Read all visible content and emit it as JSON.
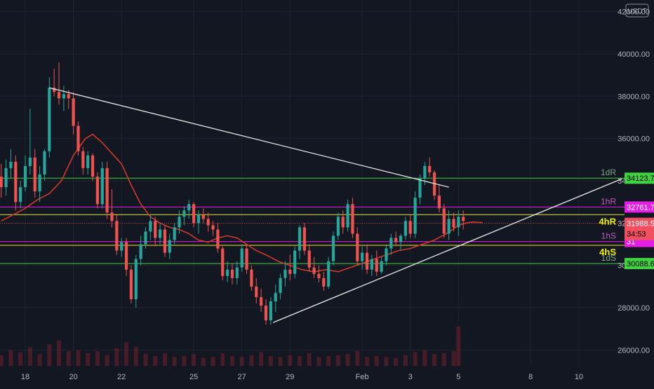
{
  "currency_badge": "USDT",
  "colors": {
    "background": "#131722",
    "grid": "#1f2430",
    "up": "#26a69a",
    "down": "#ef5350",
    "ma": "#d0392b",
    "trendline": "#e8e8e8",
    "level_green": "#3fd13f",
    "level_magenta": "#e41ee4",
    "level_yellow": "#e8e81e",
    "axis_text": "#b2b5be"
  },
  "chart_data": {
    "type": "candlestick",
    "y_axis": {
      "ticks": [
        26000,
        28000,
        30000,
        32000,
        34000,
        36000,
        38000,
        40000,
        42000
      ],
      "labels": [
        "26000.00",
        "28000.00",
        "30000.00",
        "32000.00",
        "34000.00",
        "36000.00",
        "38000.00",
        "40000.00",
        "42000.00"
      ],
      "ylim": [
        25250,
        42550
      ]
    },
    "x_axis": {
      "ticks": [
        {
          "day": 0,
          "label": "18"
        },
        {
          "day": 2,
          "label": "20"
        },
        {
          "day": 4,
          "label": "22"
        },
        {
          "day": 7,
          "label": "25"
        },
        {
          "day": 9,
          "label": "27"
        },
        {
          "day": 11,
          "label": "29"
        },
        {
          "day": 14,
          "label": "Feb"
        },
        {
          "day": 16,
          "label": "3"
        },
        {
          "day": 18,
          "label": "5"
        },
        {
          "day": 21,
          "label": "8"
        },
        {
          "day": 23,
          "label": "10"
        }
      ],
      "xlim": [
        -1.05,
        24.9
      ]
    },
    "candles": [
      [
        -1.0,
        34200,
        34800,
        33200,
        33700
      ],
      [
        -0.8,
        33700,
        35000,
        33300,
        34600
      ],
      [
        -0.6,
        34600,
        35500,
        34100,
        34900
      ],
      [
        -0.4,
        34900,
        35200,
        32600,
        33000
      ],
      [
        -0.2,
        33000,
        34000,
        32700,
        33700
      ],
      [
        0.0,
        33700,
        35200,
        33500,
        34700
      ],
      [
        0.2,
        34700,
        37400,
        34300,
        35100
      ],
      [
        0.4,
        35100,
        35500,
        33200,
        33500
      ],
      [
        0.6,
        33500,
        34700,
        33000,
        34300
      ],
      [
        0.8,
        34300,
        35500,
        34000,
        35400
      ],
      [
        1.0,
        35400,
        38900,
        35100,
        38400
      ],
      [
        1.2,
        38400,
        39300,
        38000,
        38200
      ],
      [
        1.4,
        38200,
        39600,
        37600,
        37900
      ],
      [
        1.6,
        37900,
        38500,
        37300,
        38100
      ],
      [
        1.8,
        38100,
        38300,
        37400,
        37900
      ],
      [
        2.0,
        37900,
        38200,
        36200,
        36600
      ],
      [
        2.2,
        36600,
        36800,
        35200,
        35400
      ],
      [
        2.4,
        35400,
        35600,
        34300,
        34600
      ],
      [
        2.6,
        34600,
        35400,
        34300,
        35200
      ],
      [
        2.8,
        35200,
        35300,
        34000,
        34200
      ],
      [
        3.0,
        34200,
        34400,
        32700,
        32900
      ],
      [
        3.2,
        32900,
        34900,
        32700,
        34600
      ],
      [
        3.4,
        34600,
        34900,
        32200,
        32500
      ],
      [
        3.6,
        32500,
        33600,
        31800,
        32100
      ],
      [
        3.8,
        32100,
        32400,
        30500,
        30700
      ],
      [
        4.0,
        30700,
        31300,
        30400,
        31100
      ],
      [
        4.2,
        31100,
        31300,
        29500,
        29800
      ],
      [
        4.4,
        29800,
        30000,
        28200,
        28400
      ],
      [
        4.6,
        28400,
        30500,
        28000,
        30300
      ],
      [
        4.8,
        30300,
        31400,
        30000,
        31000
      ],
      [
        5.0,
        31000,
        31800,
        30800,
        31600
      ],
      [
        5.2,
        31600,
        32400,
        31200,
        32100
      ],
      [
        5.4,
        32100,
        32300,
        30900,
        31300
      ],
      [
        5.6,
        31300,
        32000,
        31000,
        31700
      ],
      [
        5.8,
        31700,
        31900,
        30400,
        30600
      ],
      [
        6.0,
        30600,
        31500,
        30300,
        31200
      ],
      [
        6.2,
        31200,
        32000,
        31000,
        31800
      ],
      [
        6.4,
        31800,
        32600,
        31500,
        32300
      ],
      [
        6.6,
        32300,
        32800,
        31900,
        32600
      ],
      [
        6.8,
        32600,
        33100,
        32200,
        32900
      ],
      [
        7.0,
        32900,
        33000,
        31800,
        32000
      ],
      [
        7.2,
        32000,
        32600,
        31500,
        32400
      ],
      [
        7.4,
        32400,
        32700,
        32000,
        32200
      ],
      [
        7.6,
        32200,
        32500,
        31600,
        31900
      ],
      [
        7.8,
        31900,
        32100,
        31400,
        31700
      ],
      [
        8.0,
        31700,
        32000,
        30600,
        30800
      ],
      [
        8.2,
        30800,
        30900,
        29300,
        29500
      ],
      [
        8.4,
        29500,
        30200,
        29200,
        29800
      ],
      [
        8.6,
        29800,
        30100,
        29100,
        29400
      ],
      [
        8.8,
        29400,
        30200,
        29100,
        29900
      ],
      [
        9.0,
        29900,
        31000,
        29700,
        30800
      ],
      [
        9.2,
        30800,
        31000,
        29600,
        29800
      ],
      [
        9.4,
        29800,
        30000,
        28800,
        29000
      ],
      [
        9.6,
        29000,
        29400,
        28200,
        28500
      ],
      [
        9.8,
        28500,
        28900,
        27800,
        28100
      ],
      [
        10.0,
        28100,
        28400,
        27200,
        27400
      ],
      [
        10.2,
        27400,
        28500,
        27200,
        28300
      ],
      [
        10.4,
        28300,
        29100,
        27800,
        28700
      ],
      [
        10.6,
        28700,
        29600,
        28400,
        29400
      ],
      [
        10.8,
        29400,
        30200,
        29000,
        29800
      ],
      [
        11.0,
        29800,
        30500,
        29300,
        29600
      ],
      [
        11.2,
        29600,
        30900,
        29400,
        30700
      ],
      [
        11.4,
        30700,
        31900,
        30300,
        31800
      ],
      [
        11.6,
        31800,
        32000,
        30500,
        30700
      ],
      [
        11.8,
        30700,
        31000,
        29700,
        29900
      ],
      [
        12.0,
        29900,
        30400,
        29400,
        29600
      ],
      [
        12.2,
        29600,
        30000,
        29200,
        29400
      ],
      [
        12.4,
        29400,
        29700,
        28800,
        29000
      ],
      [
        12.6,
        29000,
        30400,
        28900,
        30200
      ],
      [
        12.8,
        30200,
        31600,
        30000,
        31400
      ],
      [
        13.0,
        31400,
        32500,
        31200,
        32300
      ],
      [
        13.2,
        32300,
        32600,
        31500,
        31800
      ],
      [
        13.4,
        31800,
        33100,
        31600,
        32900
      ],
      [
        13.6,
        32900,
        33200,
        31300,
        31500
      ],
      [
        13.8,
        31500,
        31800,
        30000,
        30200
      ],
      [
        14.0,
        30200,
        30900,
        29800,
        30600
      ],
      [
        14.2,
        30600,
        31000,
        29600,
        29800
      ],
      [
        14.4,
        29800,
        30500,
        29500,
        30300
      ],
      [
        14.6,
        30300,
        30700,
        29500,
        29700
      ],
      [
        14.8,
        29700,
        30400,
        29600,
        30200
      ],
      [
        15.0,
        30200,
        31000,
        30000,
        30800
      ],
      [
        15.2,
        30800,
        31500,
        30500,
        31300
      ],
      [
        15.4,
        31300,
        31600,
        30900,
        31100
      ],
      [
        15.6,
        31100,
        31500,
        30700,
        31400
      ],
      [
        15.8,
        31400,
        32300,
        31200,
        32100
      ],
      [
        16.0,
        32100,
        32400,
        31300,
        31500
      ],
      [
        16.2,
        31500,
        33500,
        31300,
        33200
      ],
      [
        16.4,
        33200,
        34300,
        32900,
        34100
      ],
      [
        16.6,
        34100,
        34900,
        33800,
        34700
      ],
      [
        16.8,
        34700,
        35100,
        34200,
        34400
      ],
      [
        17.0,
        34400,
        34500,
        33100,
        33300
      ],
      [
        17.2,
        33300,
        33800,
        32500,
        32700
      ],
      [
        17.4,
        32700,
        32900,
        31300,
        31500
      ],
      [
        17.6,
        31500,
        32600,
        31200,
        32200
      ],
      [
        17.8,
        32200,
        32500,
        31600,
        31800
      ],
      [
        18.0,
        31800,
        32600,
        31400,
        32300
      ],
      [
        18.2,
        32300,
        32600,
        31700,
        32100
      ]
    ],
    "moving_average": [
      [
        -1.0,
        32100
      ],
      [
        -0.5,
        32400
      ],
      [
        0.0,
        32700
      ],
      [
        0.5,
        33100
      ],
      [
        1.0,
        33400
      ],
      [
        1.5,
        34000
      ],
      [
        2.0,
        35200
      ],
      [
        2.5,
        36000
      ],
      [
        2.8,
        36200
      ],
      [
        3.2,
        35800
      ],
      [
        3.6,
        35300
      ],
      [
        4.0,
        34800
      ],
      [
        4.4,
        33800
      ],
      [
        4.8,
        32900
      ],
      [
        5.2,
        32300
      ],
      [
        5.6,
        32000
      ],
      [
        6.0,
        31800
      ],
      [
        6.4,
        31700
      ],
      [
        6.8,
        31500
      ],
      [
        7.2,
        31200
      ],
      [
        7.6,
        31100
      ],
      [
        8.0,
        31300
      ],
      [
        8.4,
        31400
      ],
      [
        8.8,
        31300
      ],
      [
        9.2,
        31000
      ],
      [
        9.6,
        30700
      ],
      [
        10.0,
        30500
      ],
      [
        10.5,
        30200
      ],
      [
        11.0,
        30000
      ],
      [
        11.5,
        29800
      ],
      [
        12.0,
        29700
      ],
      [
        12.5,
        29800
      ],
      [
        13.0,
        29700
      ],
      [
        13.5,
        29900
      ],
      [
        14.0,
        30100
      ],
      [
        14.5,
        30300
      ],
      [
        15.0,
        30500
      ],
      [
        15.5,
        30700
      ],
      [
        16.0,
        30800
      ],
      [
        16.5,
        31000
      ],
      [
        17.0,
        31200
      ],
      [
        17.5,
        31500
      ],
      [
        18.0,
        31900
      ],
      [
        18.3,
        32000
      ],
      [
        18.6,
        32050
      ],
      [
        19.0,
        32020
      ]
    ],
    "trendlines": [
      {
        "name": "descending",
        "from": [
          1.0,
          38400
        ],
        "to": [
          17.6,
          33700
        ]
      },
      {
        "name": "ascending",
        "from": [
          10.3,
          27300
        ],
        "to": [
          24.8,
          34100
        ]
      }
    ],
    "horizontal_levels": [
      {
        "label": "1dR",
        "price": 34123.71,
        "price_label": "34123.71",
        "color": "green"
      },
      {
        "label": "1hR",
        "price": 32761.72,
        "price_label": "32761.72",
        "color": "magenta"
      },
      {
        "label": "4hR",
        "price": 32400,
        "price_label": "",
        "color": "yellow"
      },
      {
        "label": "1hS",
        "price": 31130,
        "price_label": "31",
        "color": "magenta"
      },
      {
        "label": "4hS",
        "price": 30950,
        "price_label": "",
        "color": "yellow"
      },
      {
        "label": "1dS",
        "price": 30088.68,
        "price_label": "30088.68",
        "color": "green"
      }
    ],
    "last_price": {
      "price": 31988.57,
      "label": "31988.57",
      "countdown": "34:53"
    },
    "volume": [
      [
        -1.0,
        1.1
      ],
      [
        -0.6,
        1.6
      ],
      [
        -0.2,
        1.4
      ],
      [
        0.2,
        1.9
      ],
      [
        0.6,
        1.2
      ],
      [
        1.0,
        2.2
      ],
      [
        1.4,
        2.6
      ],
      [
        1.8,
        1.5
      ],
      [
        2.2,
        1.6
      ],
      [
        2.6,
        1.3
      ],
      [
        3.0,
        1.5
      ],
      [
        3.4,
        1.1
      ],
      [
        3.8,
        1.8
      ],
      [
        4.2,
        2.4
      ],
      [
        4.6,
        1.9
      ],
      [
        5.0,
        1.2
      ],
      [
        5.4,
        1.0
      ],
      [
        5.8,
        1.3
      ],
      [
        6.2,
        0.9
      ],
      [
        6.6,
        1.0
      ],
      [
        7.0,
        1.2
      ],
      [
        7.4,
        0.8
      ],
      [
        7.8,
        0.9
      ],
      [
        8.2,
        1.3
      ],
      [
        8.6,
        1.0
      ],
      [
        9.0,
        0.9
      ],
      [
        9.4,
        1.1
      ],
      [
        9.8,
        1.4
      ],
      [
        10.2,
        1.0
      ],
      [
        10.6,
        0.9
      ],
      [
        11.0,
        1.1
      ],
      [
        11.4,
        1.0
      ],
      [
        11.8,
        1.3
      ],
      [
        12.2,
        0.9
      ],
      [
        12.6,
        1.0
      ],
      [
        13.0,
        1.1
      ],
      [
        13.4,
        1.2
      ],
      [
        13.8,
        1.5
      ],
      [
        14.2,
        0.9
      ],
      [
        14.6,
        1.0
      ],
      [
        15.0,
        0.9
      ],
      [
        15.4,
        0.8
      ],
      [
        15.8,
        1.1
      ],
      [
        16.2,
        1.4
      ],
      [
        16.6,
        1.6
      ],
      [
        17.0,
        1.2
      ],
      [
        17.4,
        1.3
      ],
      [
        17.8,
        1.5
      ],
      [
        18.0,
        4.0
      ]
    ]
  }
}
